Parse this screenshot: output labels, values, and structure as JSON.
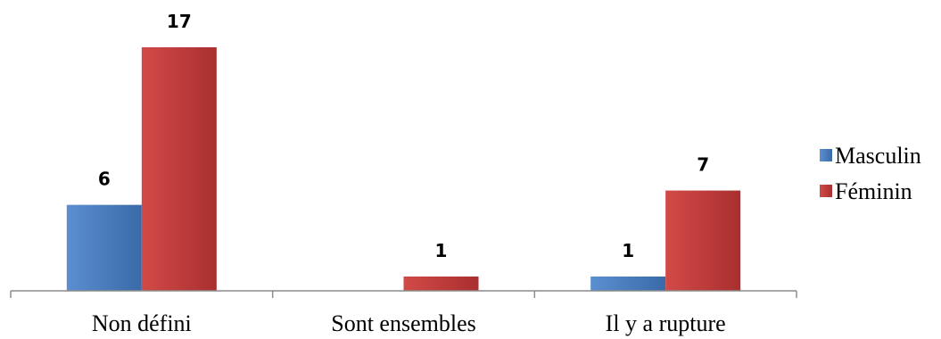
{
  "chart_data": {
    "type": "bar",
    "title": "",
    "xlabel": "",
    "ylabel": "",
    "categories": [
      "Non défini",
      "Sont ensembles",
      "Il y a rupture"
    ],
    "series": [
      {
        "name": "Masculin",
        "values": [
          6,
          0,
          1
        ],
        "color": "#4a7ebb"
      },
      {
        "name": "Féminin",
        "values": [
          17,
          1,
          7
        ],
        "color": "#c0393b"
      }
    ],
    "data_labels": [
      [
        "6",
        "",
        "1"
      ],
      [
        "17",
        "1",
        "7"
      ]
    ],
    "ylim": [
      0,
      17
    ],
    "grid": false,
    "legend_position": "right"
  }
}
